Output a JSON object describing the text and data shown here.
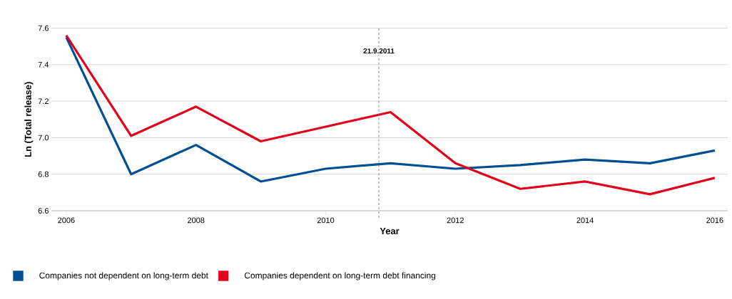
{
  "chart_data": {
    "type": "line",
    "xlabel": "Year",
    "ylabel": "Ln (Total release)",
    "x": [
      2006,
      2007,
      2008,
      2009,
      2010,
      2011,
      2012,
      2013,
      2014,
      2015,
      2016
    ],
    "series": [
      {
        "name": "Companies not dependent on long-term debt",
        "color": "#004f93",
        "values": [
          7.55,
          6.8,
          6.96,
          6.76,
          6.83,
          6.86,
          6.83,
          6.85,
          6.88,
          6.86,
          6.93
        ]
      },
      {
        "name": "Companies dependent on long-term debt financing",
        "color": "#e2001a",
        "values": [
          7.56,
          7.01,
          7.17,
          6.98,
          7.06,
          7.14,
          6.86,
          6.72,
          6.76,
          6.69,
          6.78
        ]
      }
    ],
    "xlim": [
      2005.77,
      2016.2
    ],
    "ylim": [
      6.6,
      7.6
    ],
    "xticks": [
      2006,
      2008,
      2010,
      2012,
      2014,
      2016
    ],
    "yticks": [
      6.6,
      6.8,
      {
        "value": 7,
        "label": "7.0"
      },
      7.2,
      7.4,
      7.6
    ],
    "ref_lines": [
      {
        "axis": "x",
        "value": 2010.82,
        "label": "21.9.2011",
        "color": "#777777",
        "line_style": "dashed"
      }
    ],
    "grid": "y",
    "legend": "bottom",
    "marker": "none",
    "line_style": "solid"
  }
}
